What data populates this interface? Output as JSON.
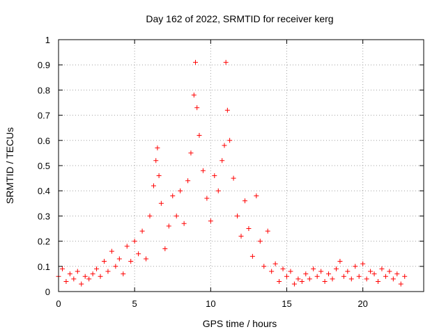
{
  "chart_data": {
    "type": "scatter",
    "title": "Day 162 of 2022, SRMTID for receiver kerg",
    "xlabel": "GPS time / hours",
    "ylabel": "SRMTID / TECUs",
    "xlim": [
      0,
      24
    ],
    "ylim": [
      0,
      1
    ],
    "xticks": [
      0,
      5,
      10,
      15,
      20
    ],
    "yticks": [
      0,
      0.1,
      0.2,
      0.3,
      0.4,
      0.5,
      0.6,
      0.7,
      0.8,
      0.9,
      1
    ],
    "xtick_labels": [
      "0",
      "5",
      "10",
      "15",
      "20"
    ],
    "ytick_labels": [
      "0",
      "0.1",
      "0.2",
      "0.3",
      "0.4",
      "0.5",
      "0.6",
      "0.7",
      "0.8",
      "0.9",
      "1"
    ],
    "grid": true,
    "marker": "+",
    "colors": {
      "series": "#ff0000",
      "frame": "#000000",
      "grid": "#a0a0a0"
    },
    "series": [
      {
        "name": "SRMTID",
        "x": [
          0.0,
          0.25,
          0.5,
          0.75,
          1.0,
          1.25,
          1.5,
          1.75,
          2.0,
          2.25,
          2.5,
          2.75,
          3.0,
          3.25,
          3.5,
          3.75,
          4.0,
          4.25,
          4.5,
          4.75,
          5.0,
          5.25,
          5.5,
          5.75,
          6.0,
          6.25,
          6.4,
          6.5,
          6.6,
          6.75,
          7.0,
          7.25,
          7.5,
          7.75,
          8.0,
          8.25,
          8.5,
          8.7,
          8.9,
          9.0,
          9.1,
          9.25,
          9.5,
          9.75,
          10.0,
          10.25,
          10.5,
          10.75,
          10.9,
          11.0,
          11.1,
          11.25,
          11.5,
          11.75,
          12.0,
          12.25,
          12.5,
          12.75,
          13.0,
          13.25,
          13.5,
          13.75,
          14.0,
          14.25,
          14.5,
          14.75,
          15.0,
          15.25,
          15.5,
          15.75,
          16.0,
          16.25,
          16.5,
          16.75,
          17.0,
          17.25,
          17.5,
          17.75,
          18.0,
          18.25,
          18.5,
          18.75,
          19.0,
          19.25,
          19.5,
          19.75,
          20.0,
          20.25,
          20.5,
          20.75,
          21.0,
          21.25,
          21.5,
          21.75,
          22.0,
          22.25,
          22.5,
          22.75
        ],
        "y": [
          0.06,
          0.09,
          0.04,
          0.07,
          0.05,
          0.08,
          0.03,
          0.06,
          0.05,
          0.07,
          0.09,
          0.06,
          0.12,
          0.08,
          0.16,
          0.1,
          0.13,
          0.07,
          0.18,
          0.12,
          0.2,
          0.15,
          0.24,
          0.13,
          0.3,
          0.42,
          0.52,
          0.57,
          0.46,
          0.35,
          0.17,
          0.26,
          0.38,
          0.3,
          0.4,
          0.27,
          0.44,
          0.55,
          0.78,
          0.91,
          0.73,
          0.62,
          0.48,
          0.37,
          0.28,
          0.46,
          0.4,
          0.52,
          0.58,
          0.91,
          0.72,
          0.6,
          0.45,
          0.3,
          0.22,
          0.36,
          0.25,
          0.14,
          0.38,
          0.2,
          0.1,
          0.24,
          0.08,
          0.11,
          0.04,
          0.09,
          0.06,
          0.08,
          0.03,
          0.05,
          0.04,
          0.07,
          0.05,
          0.09,
          0.06,
          0.08,
          0.04,
          0.07,
          0.05,
          0.09,
          0.12,
          0.06,
          0.08,
          0.05,
          0.1,
          0.06,
          0.11,
          0.05,
          0.08,
          0.07,
          0.04,
          0.09,
          0.06,
          0.08,
          0.05,
          0.07,
          0.03,
          0.06
        ]
      }
    ]
  }
}
